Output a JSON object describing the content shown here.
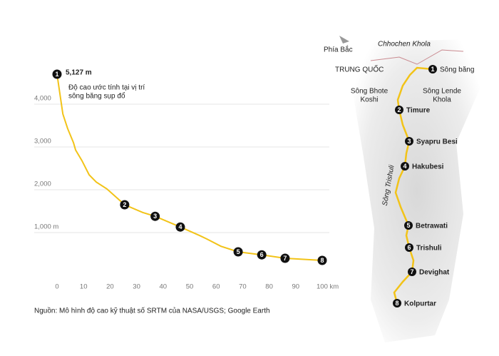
{
  "chart_data": {
    "type": "line",
    "annotation": {
      "value_label": "5,127 m",
      "text": [
        "Độ cao ước tính tại vị trí",
        "sông băng sụp đổ"
      ]
    },
    "x": [
      0,
      2.2,
      4,
      6.2,
      7,
      9.4,
      12.1,
      14.8,
      18.8,
      25.5,
      32.3,
      37,
      46.5,
      53.8,
      56.5,
      61.8,
      68.3,
      77.2,
      86,
      100
    ],
    "values": [
      4700,
      3770,
      3430,
      3100,
      2930,
      2680,
      2350,
      2180,
      2020,
      1650,
      1470,
      1380,
      1130,
      930,
      850,
      680,
      550,
      480,
      400,
      350
    ],
    "color": "#f2c318",
    "markers": [
      {
        "label": "1",
        "x": 0,
        "y": 4700
      },
      {
        "label": "2",
        "x": 25.5,
        "y": 1650
      },
      {
        "label": "3",
        "x": 37,
        "y": 1380
      },
      {
        "label": "4",
        "x": 46.5,
        "y": 1130
      },
      {
        "label": "5",
        "x": 68.3,
        "y": 550
      },
      {
        "label": "6",
        "x": 77.2,
        "y": 480
      },
      {
        "label": "7",
        "x": 86,
        "y": 400
      },
      {
        "label": "8",
        "x": 100,
        "y": 350
      }
    ],
    "xlim": [
      0,
      100
    ],
    "ylim": [
      0,
      5000
    ],
    "xticks": [
      0,
      10,
      20,
      30,
      40,
      50,
      60,
      70,
      80,
      90,
      {
        "value": 100,
        "label": "100 km"
      }
    ],
    "yticks": [
      {
        "value": 1000,
        "label": "1,000 m"
      },
      {
        "value": 2000,
        "label": "2,000"
      },
      {
        "value": 3000,
        "label": "3,000"
      },
      {
        "value": 4000,
        "label": "4,000"
      }
    ],
    "grid": true,
    "source": "Nguồn: Mô hình độ cao kỹ thuật số SRTM của NASA/USGS; Google Earth"
  },
  "map": {
    "north": "Phía Bắc",
    "river_top": "Chhochen Khola",
    "country": "TRUNG QUỐC",
    "river_left": [
      "Sông Bhote",
      "Koshi"
    ],
    "river_right": [
      "Sông Lende",
      "Khola"
    ],
    "river_main": "Sông Trishuli",
    "stops": [
      "Sông băng",
      "Timure",
      "Syapru Besi",
      "Hakubesi",
      "Betrawati",
      "Trishuli",
      "Devighat",
      "Kolpurtar"
    ]
  }
}
